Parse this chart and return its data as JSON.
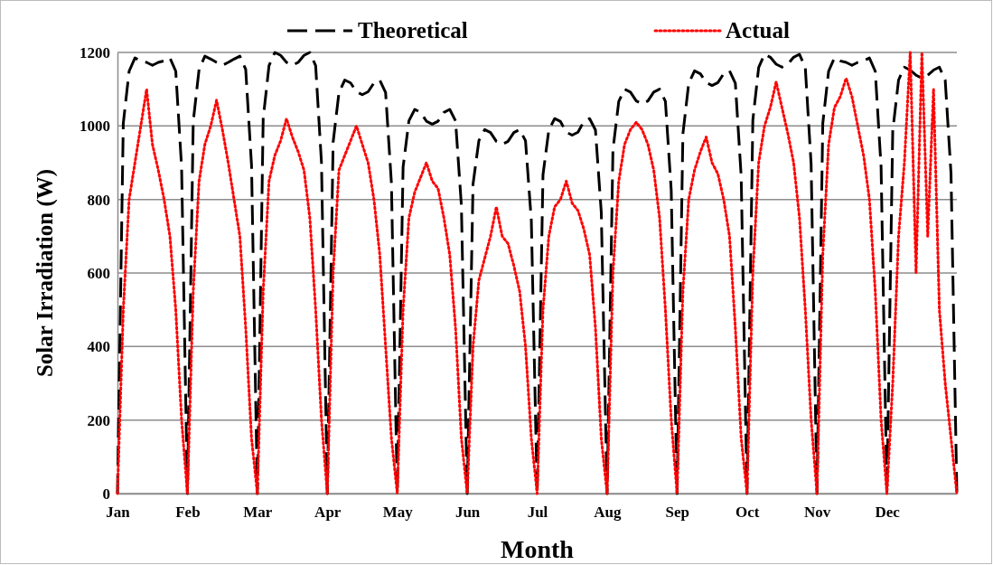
{
  "chart_data": {
    "type": "line",
    "xlabel": "Month",
    "ylabel": "Solar Irradiation (W)",
    "ylim": [
      0,
      1200
    ],
    "categories": [
      "Jan",
      null,
      null,
      null,
      null,
      null,
      null,
      null,
      null,
      null,
      null,
      null,
      "Feb",
      null,
      null,
      null,
      null,
      null,
      null,
      null,
      null,
      null,
      null,
      null,
      "Mar",
      null,
      null,
      null,
      null,
      null,
      null,
      null,
      null,
      null,
      null,
      null,
      "Apr",
      null,
      null,
      null,
      null,
      null,
      null,
      null,
      null,
      null,
      null,
      null,
      "May",
      null,
      null,
      null,
      null,
      null,
      null,
      null,
      null,
      null,
      null,
      null,
      "Jun",
      null,
      null,
      null,
      null,
      null,
      null,
      null,
      null,
      null,
      null,
      null,
      "Jul",
      null,
      null,
      null,
      null,
      null,
      null,
      null,
      null,
      null,
      null,
      null,
      "Aug",
      null,
      null,
      null,
      null,
      null,
      null,
      null,
      null,
      null,
      null,
      null,
      "Sep",
      null,
      null,
      null,
      null,
      null,
      null,
      null,
      null,
      null,
      null,
      null,
      "Oct",
      null,
      null,
      null,
      null,
      null,
      null,
      null,
      null,
      null,
      null,
      null,
      "Nov",
      null,
      null,
      null,
      null,
      null,
      null,
      null,
      null,
      null,
      null,
      null,
      "Dec",
      null,
      null,
      null,
      null,
      null,
      null,
      null,
      null,
      null,
      null,
      null,
      null
    ],
    "yticks": [
      0,
      200,
      400,
      600,
      800,
      1000,
      1200
    ],
    "grid": "y",
    "legend": "top",
    "marker": "none",
    "series": [
      {
        "name": "Theoretical",
        "color": "#000000",
        "line_style": "dashed",
        "values": [
          0,
          1007,
          1149,
          1185,
          1177,
          1173,
          1165,
          1173,
          1177,
          1185,
          1149,
          889,
          0,
          1012,
          1154,
          1190,
          1182,
          1173,
          1165,
          1173,
          1182,
          1190,
          1154,
          893,
          0,
          1020,
          1164,
          1200,
          1192,
          1173,
          1165,
          1173,
          1192,
          1200,
          1164,
          900,
          0,
          956,
          1091,
          1125,
          1117,
          1093,
          1085,
          1093,
          1117,
          1125,
          1091,
          844,
          0,
          888,
          1014,
          1045,
          1037,
          1013,
          1005,
          1013,
          1037,
          1045,
          1014,
          784,
          0,
          842,
          960,
          990,
          982,
          958,
          950,
          958,
          982,
          990,
          960,
          743,
          0,
          867,
          989,
          1020,
          1012,
          983,
          975,
          983,
          1012,
          1020,
          989,
          765,
          0,
          935,
          1067,
          1100,
          1092,
          1068,
          1060,
          1068,
          1092,
          1100,
          1067,
          825,
          0,
          978,
          1116,
          1150,
          1142,
          1118,
          1110,
          1118,
          1142,
          1150,
          1116,
          863,
          0,
          1016,
          1159,
          1195,
          1187,
          1168,
          1160,
          1168,
          1187,
          1195,
          1159,
          896,
          0,
          1007,
          1149,
          1185,
          1177,
          1173,
          1165,
          1173,
          1177,
          1185,
          1149,
          889,
          0,
          986,
          1125,
          1160,
          1152,
          1138,
          1130,
          1138,
          1152,
          1160,
          1125,
          870,
          0
        ]
      },
      {
        "name": "Actual",
        "color": "#ff0000",
        "line_style": "dotted",
        "values": [
          0,
          500,
          800,
          900,
          1000,
          1100,
          950,
          880,
          800,
          700,
          500,
          200,
          0,
          550,
          850,
          950,
          1000,
          1070,
          990,
          900,
          800,
          700,
          450,
          150,
          0,
          550,
          850,
          920,
          960,
          1020,
          970,
          930,
          880,
          750,
          500,
          200,
          0,
          600,
          880,
          920,
          960,
          1000,
          950,
          900,
          800,
          650,
          400,
          150,
          0,
          500,
          750,
          820,
          860,
          900,
          850,
          830,
          750,
          650,
          450,
          150,
          0,
          400,
          580,
          640,
          700,
          780,
          700,
          680,
          620,
          550,
          400,
          150,
          0,
          500,
          700,
          780,
          800,
          850,
          790,
          770,
          720,
          650,
          450,
          150,
          0,
          600,
          850,
          950,
          990,
          1010,
          990,
          950,
          880,
          750,
          500,
          200,
          0,
          550,
          800,
          880,
          930,
          970,
          900,
          870,
          800,
          700,
          450,
          150,
          0,
          600,
          900,
          1000,
          1050,
          1120,
          1050,
          980,
          900,
          750,
          500,
          200,
          0,
          650,
          950,
          1050,
          1080,
          1130,
          1080,
          1000,
          920,
          800,
          550,
          200,
          0,
          300,
          700,
          900,
          1200,
          600,
          1200,
          700,
          1100,
          500,
          300,
          150,
          0
        ]
      }
    ]
  }
}
